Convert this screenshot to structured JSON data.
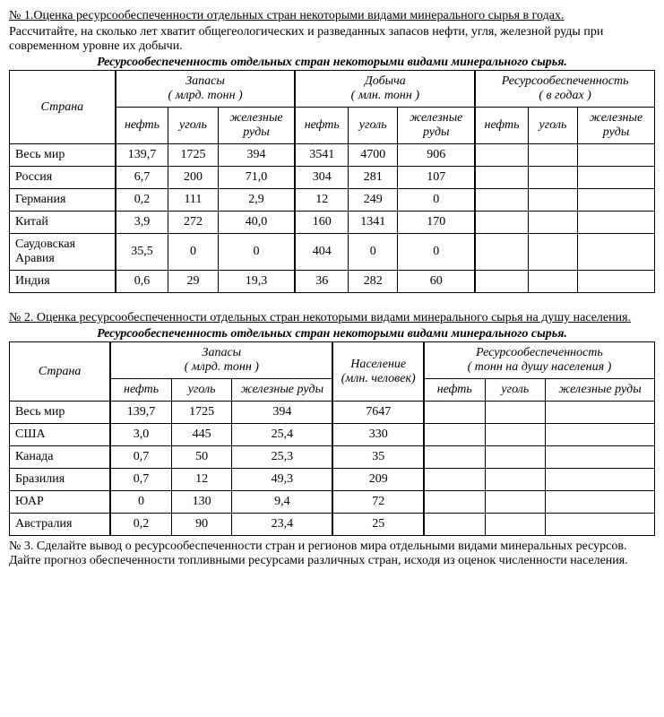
{
  "task1": {
    "title_prefix": "№ 1.",
    "title": "Оценка ресурсообеспеченности отдельных стран некоторыми видами минерального сырья в годах.",
    "instruction": "Рассчитайте, на сколько лет хватит общегеологических и разведанных запасов нефти, угля, железной руды при современном уровне их добычи.",
    "caption": "Ресурсообеспеченность отдельных стран некоторыми видами минерального сырья.",
    "col_country": "Страна",
    "group_reserves": "Запасы",
    "group_reserves_unit": "( млрд. тонн )",
    "group_extraction": "Добыча",
    "group_extraction_unit": "( млн. тонн )",
    "group_supply": "Ресурсообеспеченность",
    "group_supply_unit": "( в годах )",
    "sub_oil": "нефть",
    "sub_coal": "уголь",
    "sub_iron": "железные руды",
    "rows": [
      {
        "c": "Весь мир",
        "r1": "139,7",
        "r2": "1725",
        "r3": "394",
        "e1": "3541",
        "e2": "4700",
        "e3": "906"
      },
      {
        "c": "Россия",
        "r1": "6,7",
        "r2": "200",
        "r3": "71,0",
        "e1": "304",
        "e2": "281",
        "e3": "107"
      },
      {
        "c": "Германия",
        "r1": "0,2",
        "r2": "111",
        "r3": "2,9",
        "e1": "12",
        "e2": "249",
        "e3": "0"
      },
      {
        "c": "Китай",
        "r1": "3,9",
        "r2": "272",
        "r3": "40,0",
        "e1": "160",
        "e2": "1341",
        "e3": "170"
      },
      {
        "c": "Саудовская Аравия",
        "r1": "35,5",
        "r2": "0",
        "r3": "0",
        "e1": "404",
        "e2": "0",
        "e3": "0"
      },
      {
        "c": "Индия",
        "r1": "0,6",
        "r2": "29",
        "r3": "19,3",
        "e1": "36",
        "e2": "282",
        "e3": "60"
      }
    ]
  },
  "task2": {
    "title_prefix": "№ 2. ",
    "title": "Оценка ресурсообеспеченности отдельных стран некоторыми видами минерального сырья на душу населения.",
    "caption": "Ресурсообеспеченность отдельных стран некоторыми видами минерального сырья.",
    "col_country": "Страна",
    "group_reserves": "Запасы",
    "group_reserves_unit": "( млрд. тонн )",
    "col_population": "Население",
    "col_population_unit": "(млн. человек)",
    "group_supply": "Ресурсообеспеченность",
    "group_supply_unit": "( тонн на душу населения )",
    "sub_oil": "нефть",
    "sub_coal": "уголь",
    "sub_iron": "железные руды",
    "rows": [
      {
        "c": "Весь мир",
        "r1": "139,7",
        "r2": "1725",
        "r3": "394",
        "p": "7647"
      },
      {
        "c": "США",
        "r1": "3,0",
        "r2": "445",
        "r3": "25,4",
        "p": "330"
      },
      {
        "c": "Канада",
        "r1": "0,7",
        "r2": "50",
        "r3": "25,3",
        "p": "35"
      },
      {
        "c": "Бразилия",
        "r1": "0,7",
        "r2": "12",
        "r3": "49,3",
        "p": "209"
      },
      {
        "c": "ЮАР",
        "r1": "0",
        "r2": "130",
        "r3": "9,4",
        "p": "72"
      },
      {
        "c": "Австралия",
        "r1": "0,2",
        "r2": "90",
        "r3": "23,4",
        "p": "25"
      }
    ]
  },
  "task3": {
    "text": "№ 3. Сделайте вывод о ресурсообеспеченности стран и регионов мира отдельными видами минеральных ресурсов. Дайте прогноз обеспеченности топливными ресурсами различных стран, исходя из оценок численности населения."
  },
  "layout": {
    "t1_col_widths": {
      "country": 130,
      "narrow": 50,
      "wide": 82
    },
    "t2_col_widths": {
      "country": 100,
      "narrow": 55,
      "iron": 100,
      "pop": 88,
      "supply_narrow": 55,
      "supply_wide": 110
    }
  }
}
